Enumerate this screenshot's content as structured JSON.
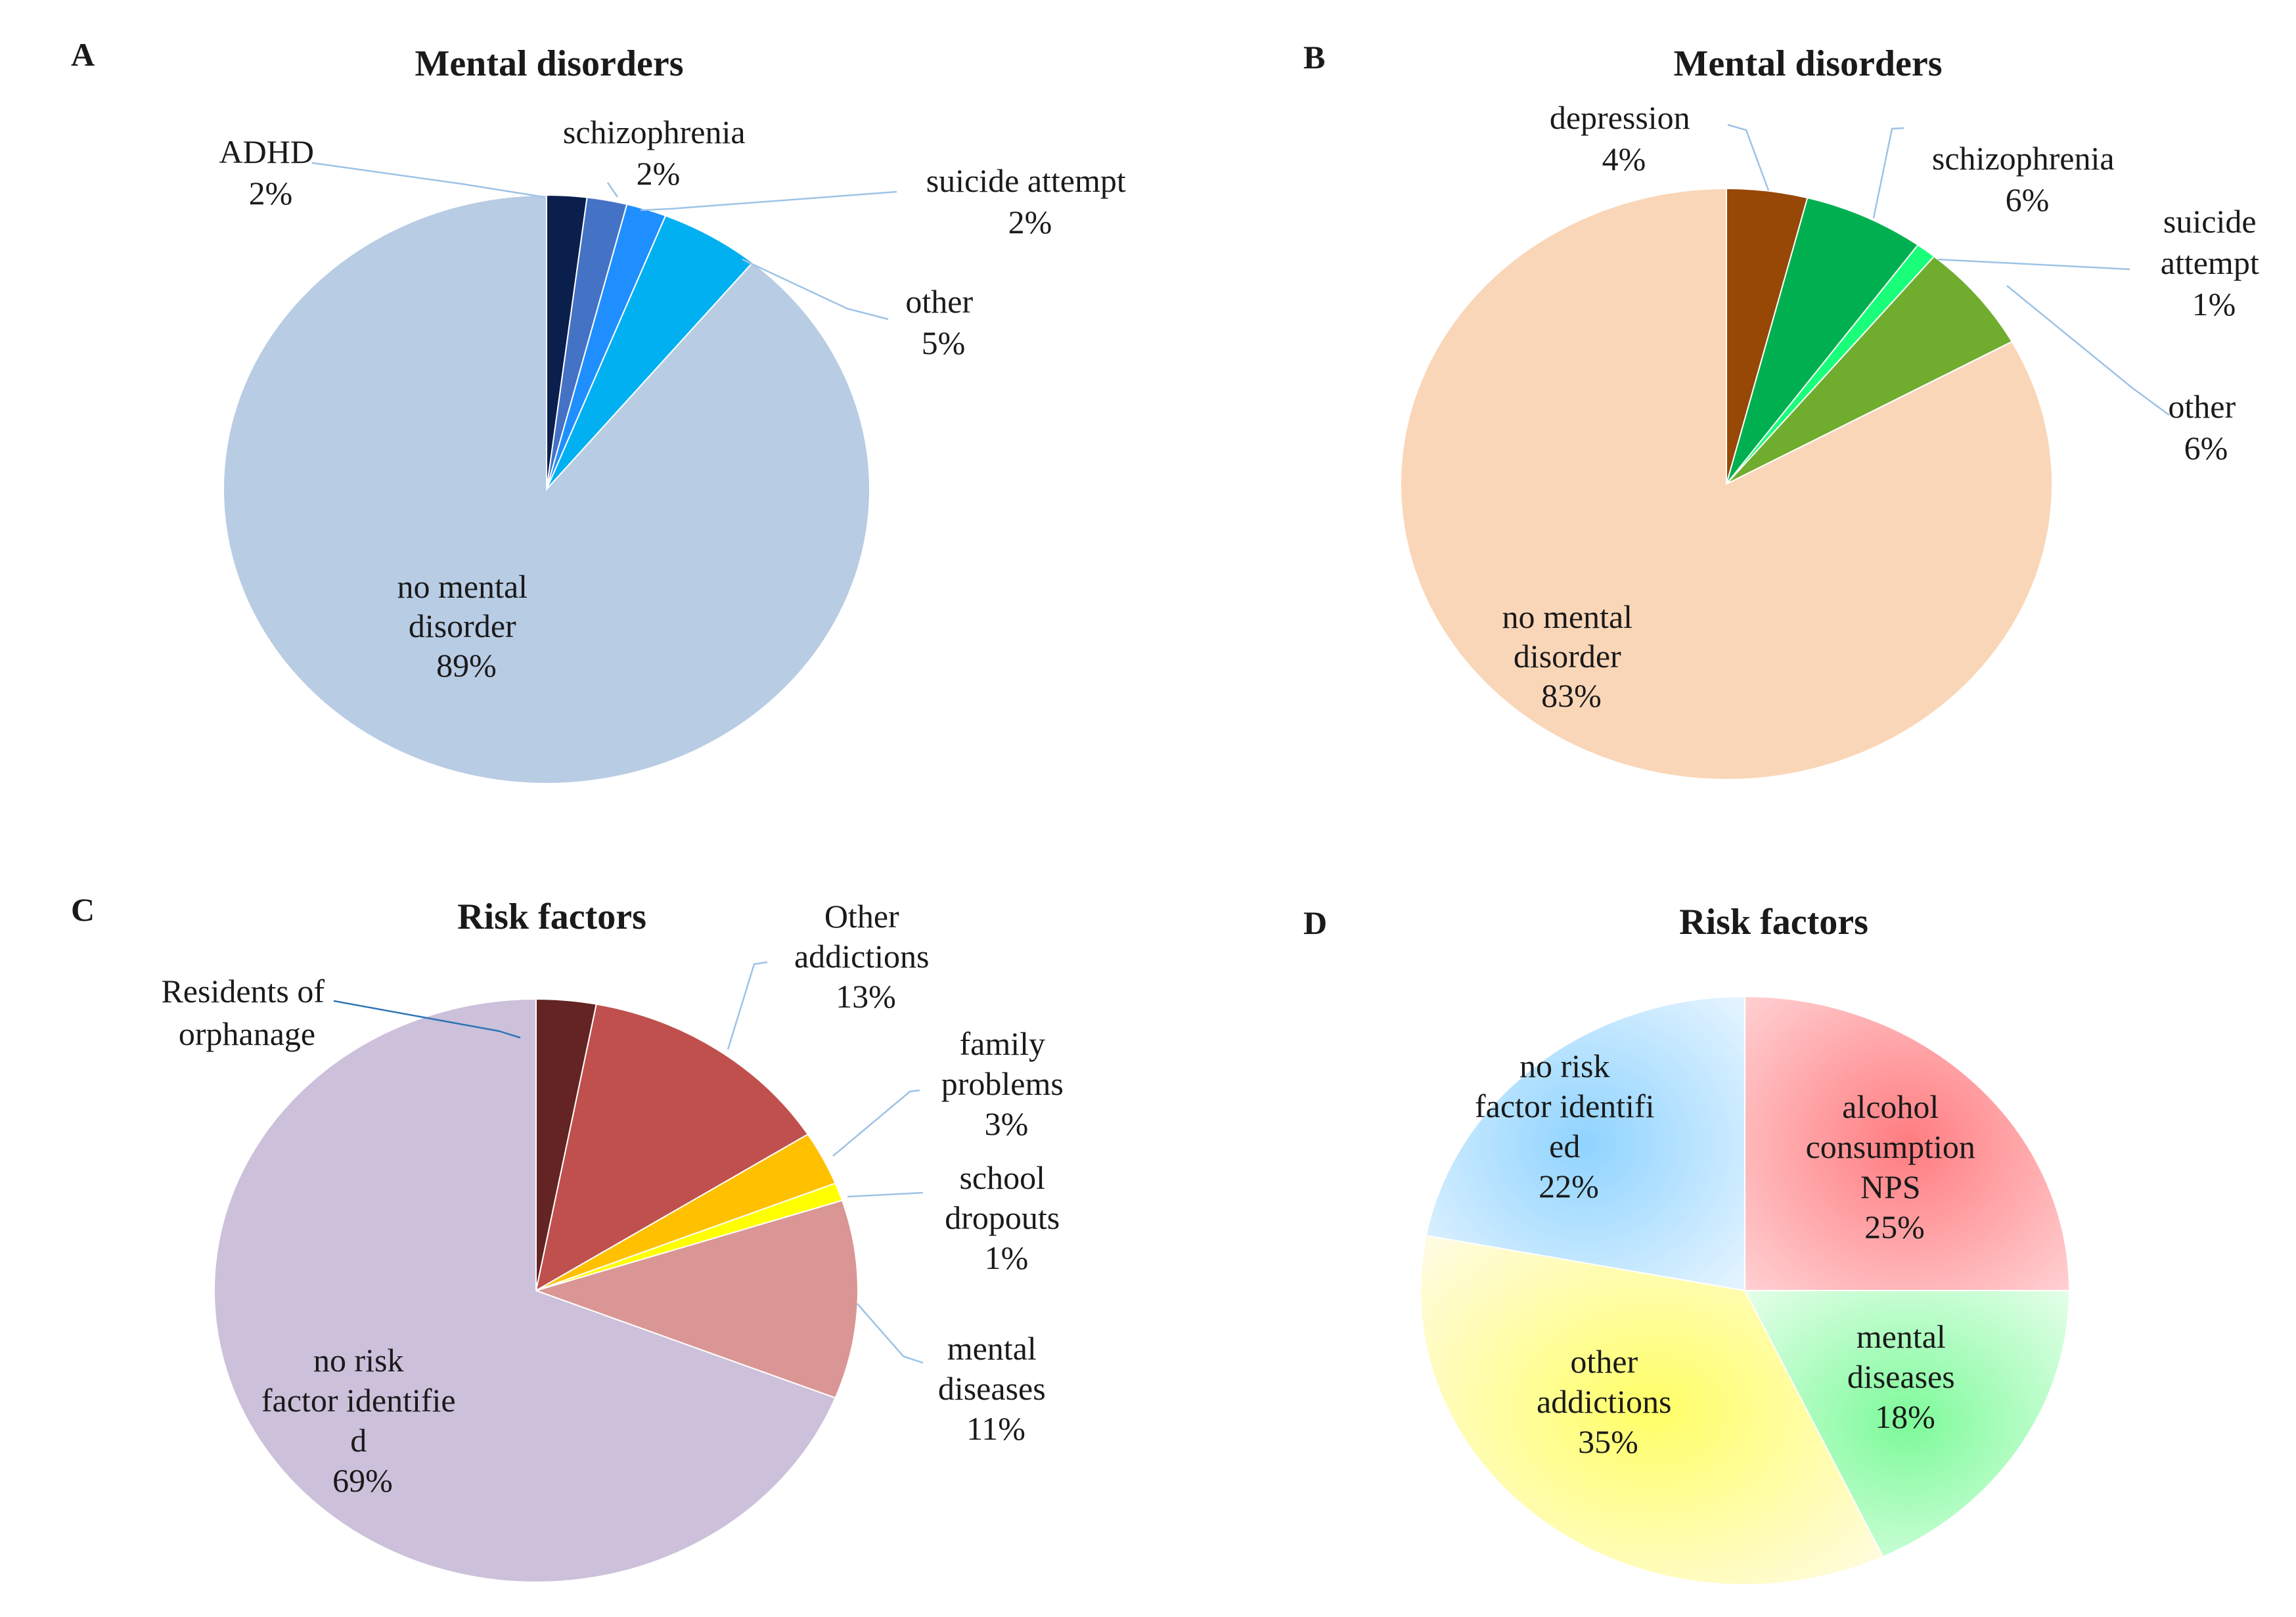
{
  "chart_data": [
    {
      "panel": "A",
      "type": "pie",
      "title": "Mental disorders",
      "unit": "%",
      "slices": [
        {
          "key": "adhd",
          "label": "ADHD",
          "value": 2,
          "display": "2%",
          "color": "#0b1f4d"
        },
        {
          "key": "schizophrenia",
          "label": "schizophrenia",
          "value": 2,
          "display": "2%",
          "color": "#4472c4"
        },
        {
          "key": "suicide",
          "label": "suicide  attempt",
          "value": 2,
          "display": "2%",
          "color": "#1f8fff"
        },
        {
          "key": "other",
          "label": "other",
          "value": 5,
          "display": "5%",
          "color": "#00b0f0"
        },
        {
          "key": "none",
          "label": "no mental disorder",
          "value": 89,
          "display": "89%",
          "color": "#b8cce4"
        }
      ]
    },
    {
      "panel": "B",
      "type": "pie",
      "title": "Mental disorders",
      "unit": "%",
      "slices": [
        {
          "key": "depression",
          "label": "depression",
          "value": 4,
          "display": "4%",
          "color": "#974706"
        },
        {
          "key": "schizophrenia",
          "label": "schizophrenia",
          "value": 6,
          "display": "6%",
          "color": "#00b050"
        },
        {
          "key": "suicide",
          "label": "suicide attempt",
          "value": 1,
          "display": "1%",
          "color": "#1aff7a"
        },
        {
          "key": "other",
          "label": "other",
          "value": 6,
          "display": "6%",
          "color": "#70ad2f"
        },
        {
          "key": "none",
          "label": "no mental disorder",
          "value": 83,
          "display": "83%",
          "color": "#fad6b8"
        }
      ]
    },
    {
      "panel": "C",
      "type": "pie",
      "title": "Risk factors",
      "unit": "%",
      "slices": [
        {
          "key": "orphanage",
          "label": "Residents of orphanage",
          "value": 3,
          "display": "",
          "color": "#632423"
        },
        {
          "key": "addictions",
          "label": "Other addictions",
          "value": 13,
          "display": "13%",
          "color": "#c0504d"
        },
        {
          "key": "family",
          "label": "family problems",
          "value": 3,
          "display": "3%",
          "color": "#ffc000"
        },
        {
          "key": "dropouts",
          "label": "school dropouts",
          "value": 1,
          "display": "1%",
          "color": "#ffff00"
        },
        {
          "key": "mental",
          "label": "mental diseases",
          "value": 11,
          "display": "11%",
          "color": "#da9694"
        },
        {
          "key": "none",
          "label": "no risk factor identified",
          "value": 69,
          "display": "69%",
          "color": "#ccc0da"
        }
      ]
    },
    {
      "panel": "D",
      "type": "pie",
      "title": "Risk factors",
      "unit": "%",
      "slices": [
        {
          "key": "alcohol",
          "label": "alcohol consumption NPS",
          "value": 25,
          "display": "25%",
          "color": "#ff7c80",
          "color2": "#ffd0d2"
        },
        {
          "key": "mental",
          "label": "mental diseases",
          "value": 18,
          "display": "18%",
          "color": "#7dfa9a",
          "color2": "#e4ffe9"
        },
        {
          "key": "addictions",
          "label": "other addictions",
          "value": 35,
          "display": "35%",
          "color": "#ffff66",
          "color2": "#fffbe6"
        },
        {
          "key": "none",
          "label": "no risk factor identified",
          "value": 22,
          "display": "22%",
          "color": "#8fd3ff",
          "color2": "#e6f5ff"
        }
      ]
    }
  ],
  "labels": {
    "A": {
      "letter": "A",
      "adhd": {
        "l1": "ADHD",
        "pct": "2%"
      },
      "schizophrenia": {
        "l1": "schizophrenia",
        "pct": "2%"
      },
      "suicide": {
        "l1": "suicide  attempt",
        "pct": "2%"
      },
      "other": {
        "l1": "other",
        "pct": "5%"
      },
      "none": {
        "l1": "no mental",
        "l2": "disorder",
        "pct": "89%"
      }
    },
    "B": {
      "letter": "B",
      "depression": {
        "l1": "depression",
        "pct": "4%"
      },
      "schizophrenia": {
        "l1": "schizophrenia",
        "pct": "6%"
      },
      "suicide": {
        "l1": "suicide",
        "l2": "attempt",
        "pct": "1%"
      },
      "other": {
        "l1": "other",
        "pct": "6%"
      },
      "none": {
        "l1": "no mental",
        "l2": "disorder",
        "pct": "83%"
      }
    },
    "C": {
      "letter": "C",
      "orphanage": {
        "l1": "Residents of",
        "l2": "orphanage"
      },
      "addictions": {
        "l1": "Other",
        "l2": "addictions",
        "pct": "13%"
      },
      "family": {
        "l1": "family",
        "l2": "problems",
        "pct": "3%"
      },
      "dropouts": {
        "l1": "school",
        "l2": "dropouts",
        "pct": "1%"
      },
      "mental": {
        "l1": "mental",
        "l2": "diseases",
        "pct": "11%"
      },
      "none": {
        "l1": "no risk",
        "l2": "factor identifie",
        "l3": "d",
        "pct": "69%"
      }
    },
    "D": {
      "letter": "D",
      "alcohol": {
        "l1": "alcohol",
        "l2": "consumption",
        "l3": "NPS",
        "pct": "25%"
      },
      "mental": {
        "l1": "mental",
        "l2": "diseases",
        "pct": "18%"
      },
      "addictions": {
        "l1": "other",
        "l2": "addictions",
        "pct": "35%"
      },
      "none": {
        "l1": "no risk",
        "l2": "factor identifi",
        "l3": "ed",
        "pct": "22%"
      }
    }
  }
}
